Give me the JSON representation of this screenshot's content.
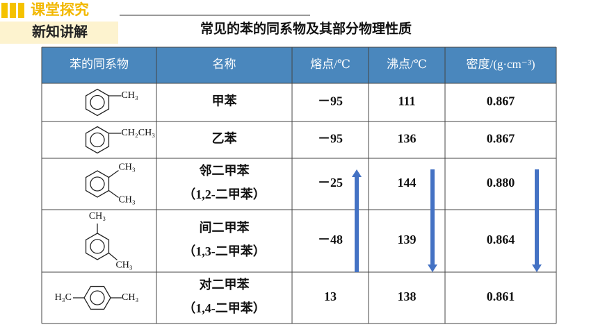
{
  "header": {
    "section": "课堂探究",
    "subtitle": "新知讲解"
  },
  "title": "常见的苯的同系物及其部分物理性质",
  "table": {
    "columns": [
      "苯的同系物",
      "名称",
      "熔点/℃",
      "沸点/℃",
      "密度/(g·cm⁻³)"
    ],
    "rows": [
      {
        "structure": [
          "CH₃"
        ],
        "name": "甲苯",
        "melting": "－95",
        "boiling": "111",
        "density": "0.867"
      },
      {
        "structure": [
          "CH₂CH₃"
        ],
        "name": "乙苯",
        "melting": "－95",
        "boiling": "136",
        "density": "0.867"
      },
      {
        "structure": [
          "CH₃",
          "CH₃"
        ],
        "name": "邻二甲苯",
        "alias": "（1,2-二甲苯）",
        "melting": "－25",
        "boiling": "144",
        "density": "0.880"
      },
      {
        "structure": [
          "CH₃",
          "CH₃"
        ],
        "name": "间二甲苯",
        "alias": "（1,3-二甲苯）",
        "melting": "－48",
        "boiling": "139",
        "density": "0.864"
      },
      {
        "structure": [
          "H₃C",
          "CH₃"
        ],
        "name": "对二甲苯",
        "alias": "（1,4-二甲苯）",
        "melting": "13",
        "boiling": "138",
        "density": "0.861"
      }
    ]
  }
}
